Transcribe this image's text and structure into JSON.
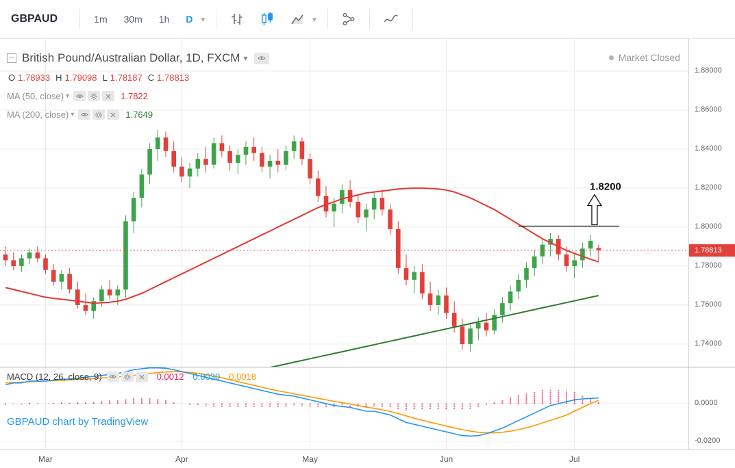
{
  "colors": {
    "up": "#3fa34a",
    "down": "#e2403b",
    "ma50": "#e8352e",
    "ma200": "#2e7d32",
    "macd": "#2196f3",
    "signal": "#ff9800",
    "hist": "#e91e63",
    "accent": "#2196f3",
    "grid": "#ececec",
    "annotation": "#111111"
  },
  "toolbar": {
    "symbol": "GBPAUD",
    "intervals": [
      {
        "label": "1m",
        "active": false
      },
      {
        "label": "30m",
        "active": false
      },
      {
        "label": "1h",
        "active": false
      },
      {
        "label": "D",
        "active": true
      }
    ]
  },
  "icons": {
    "toolbar": [
      "bars-chart-icon",
      "candlestick-chart-icon",
      "area-chart-icon",
      "chevron-down-icon",
      "compare-icon",
      "curve-line-icon"
    ],
    "legend": [
      "collapse-pane-icon",
      "chevron-down-icon",
      "eye-icon",
      "gear-icon",
      "close-icon"
    ],
    "status": [
      "status-dot"
    ]
  },
  "legend": {
    "title": "British Pound/Australian Dollar, 1D, FXCM",
    "ohlc": [
      {
        "label": "O",
        "value": "1.78933"
      },
      {
        "label": "H",
        "value": "1.79098"
      },
      {
        "label": "L",
        "value": "1.78187"
      },
      {
        "label": "C",
        "value": "1.78813"
      }
    ],
    "ma50_label": "MA (50, close)",
    "ma50_value": "1.7822",
    "ma200_label": "MA (200, close)",
    "ma200_value": "1.7649"
  },
  "market_status": "Market Closed",
  "macd_legend": {
    "label": "MACD (12, 26, close, 9)",
    "values": [
      "0.0012",
      "0.0030",
      "0.0018"
    ]
  },
  "attribution": "GBPAUD chart by TradingView",
  "price_axis": {
    "last_price_label": "1.78813"
  },
  "chart_data": {
    "type": "candlestick",
    "symbol": "GBPAUD",
    "title": "British Pound/Australian Dollar, 1D, FXCM",
    "interval": "1D",
    "exchange": "FXCM",
    "ylim": [
      1.7284,
      1.8968
    ],
    "macd_ylim": [
      -0.024,
      0.0196
    ],
    "price_ticks": [
      {
        "label": "1.88000",
        "value": 1.88
      },
      {
        "label": "1.86000",
        "value": 1.86
      },
      {
        "label": "1.84000",
        "value": 1.84
      },
      {
        "label": "1.82000",
        "value": 1.82
      },
      {
        "label": "1.80000",
        "value": 1.8
      },
      {
        "label": "1.78000",
        "value": 1.78
      },
      {
        "label": "1.76000",
        "value": 1.76
      },
      {
        "label": "1.74000",
        "value": 1.74
      }
    ],
    "macd_ticks": [
      {
        "label": "0.0000",
        "value": 0
      },
      {
        "label": "-0.0200",
        "value": -0.02
      }
    ],
    "time_ticks": [
      {
        "label": "Mar",
        "index": 5
      },
      {
        "label": "Apr",
        "index": 22
      },
      {
        "label": "May",
        "index": 38
      },
      {
        "label": "Jun",
        "index": 55
      },
      {
        "label": "Jul",
        "index": 71
      }
    ],
    "last_price": 1.78813,
    "annotation": {
      "text": "1.8200",
      "line_price": 1.8005,
      "line_start_index": 64,
      "line_end_index": 76.6,
      "arrow_index": 73.5
    },
    "ohlc": [
      [
        1.786,
        1.79,
        1.78,
        1.783
      ],
      [
        1.783,
        1.787,
        1.778,
        1.78
      ],
      [
        1.78,
        1.786,
        1.777,
        1.784
      ],
      [
        1.784,
        1.789,
        1.781,
        1.787
      ],
      [
        1.787,
        1.79,
        1.782,
        1.784
      ],
      [
        1.784,
        1.786,
        1.776,
        1.778
      ],
      [
        1.778,
        1.781,
        1.77,
        1.772
      ],
      [
        1.772,
        1.778,
        1.768,
        1.776
      ],
      [
        1.776,
        1.779,
        1.766,
        1.768
      ],
      [
        1.768,
        1.772,
        1.758,
        1.76
      ],
      [
        1.76,
        1.766,
        1.755,
        1.757
      ],
      [
        1.757,
        1.764,
        1.753,
        1.762
      ],
      [
        1.762,
        1.77,
        1.759,
        1.768
      ],
      [
        1.768,
        1.773,
        1.763,
        1.765
      ],
      [
        1.765,
        1.77,
        1.76,
        1.768
      ],
      [
        1.768,
        1.806,
        1.764,
        1.803
      ],
      [
        1.803,
        1.818,
        1.797,
        1.815
      ],
      [
        1.815,
        1.83,
        1.81,
        1.827
      ],
      [
        1.827,
        1.843,
        1.822,
        1.84
      ],
      [
        1.84,
        1.85,
        1.834,
        1.846
      ],
      [
        1.846,
        1.849,
        1.836,
        1.839
      ],
      [
        1.839,
        1.844,
        1.828,
        1.831
      ],
      [
        1.831,
        1.836,
        1.823,
        1.826
      ],
      [
        1.826,
        1.833,
        1.82,
        1.83
      ],
      [
        1.83,
        1.838,
        1.826,
        1.835
      ],
      [
        1.835,
        1.841,
        1.828,
        1.832
      ],
      [
        1.832,
        1.846,
        1.83,
        1.843
      ],
      [
        1.843,
        1.847,
        1.836,
        1.839
      ],
      [
        1.839,
        1.842,
        1.829,
        1.833
      ],
      [
        1.833,
        1.84,
        1.827,
        1.837
      ],
      [
        1.837,
        1.844,
        1.832,
        1.841
      ],
      [
        1.841,
        1.846,
        1.834,
        1.838
      ],
      [
        1.838,
        1.841,
        1.828,
        1.831
      ],
      [
        1.831,
        1.837,
        1.825,
        1.834
      ],
      [
        1.834,
        1.84,
        1.828,
        1.832
      ],
      [
        1.832,
        1.842,
        1.829,
        1.839
      ],
      [
        1.839,
        1.847,
        1.835,
        1.844
      ],
      [
        1.844,
        1.846,
        1.832,
        1.835
      ],
      [
        1.835,
        1.838,
        1.822,
        1.825
      ],
      [
        1.825,
        1.829,
        1.813,
        1.816
      ],
      [
        1.816,
        1.821,
        1.805,
        1.808
      ],
      [
        1.808,
        1.815,
        1.8,
        1.812
      ],
      [
        1.812,
        1.822,
        1.807,
        1.819
      ],
      [
        1.819,
        1.824,
        1.81,
        1.813
      ],
      [
        1.813,
        1.817,
        1.802,
        1.805
      ],
      [
        1.805,
        1.812,
        1.798,
        1.809
      ],
      [
        1.809,
        1.818,
        1.804,
        1.815
      ],
      [
        1.815,
        1.819,
        1.806,
        1.809
      ],
      [
        1.809,
        1.812,
        1.796,
        1.799
      ],
      [
        1.799,
        1.803,
        1.776,
        1.779
      ],
      [
        1.779,
        1.786,
        1.77,
        1.773
      ],
      [
        1.773,
        1.78,
        1.766,
        1.777
      ],
      [
        1.777,
        1.781,
        1.763,
        1.766
      ],
      [
        1.766,
        1.772,
        1.757,
        1.76
      ],
      [
        1.76,
        1.768,
        1.755,
        1.765
      ],
      [
        1.765,
        1.769,
        1.753,
        1.756
      ],
      [
        1.756,
        1.762,
        1.746,
        1.749
      ],
      [
        1.749,
        1.753,
        1.737,
        1.74
      ],
      [
        1.74,
        1.751,
        1.736,
        1.748
      ],
      [
        1.748,
        1.754,
        1.742,
        1.751
      ],
      [
        1.751,
        1.756,
        1.744,
        1.747
      ],
      [
        1.747,
        1.758,
        1.745,
        1.755
      ],
      [
        1.755,
        1.764,
        1.751,
        1.761
      ],
      [
        1.761,
        1.77,
        1.757,
        1.767
      ],
      [
        1.767,
        1.776,
        1.763,
        1.773
      ],
      [
        1.773,
        1.782,
        1.769,
        1.779
      ],
      [
        1.779,
        1.788,
        1.775,
        1.785
      ],
      [
        1.785,
        1.794,
        1.781,
        1.791
      ],
      [
        1.791,
        1.797,
        1.785,
        1.794
      ],
      [
        1.794,
        1.796,
        1.783,
        1.786
      ],
      [
        1.786,
        1.79,
        1.777,
        1.78
      ],
      [
        1.78,
        1.786,
        1.774,
        1.783
      ],
      [
        1.783,
        1.792,
        1.779,
        1.789
      ],
      [
        1.789,
        1.796,
        1.785,
        1.793
      ],
      [
        1.78933,
        1.79098,
        1.78187,
        1.78813
      ]
    ],
    "ma50": [
      1.769,
      1.768,
      1.767,
      1.766,
      1.765,
      1.764,
      1.7635,
      1.763,
      1.7625,
      1.762,
      1.7615,
      1.761,
      1.7612,
      1.7615,
      1.762,
      1.763,
      1.7645,
      1.766,
      1.768,
      1.77,
      1.772,
      1.774,
      1.776,
      1.778,
      1.78,
      1.782,
      1.784,
      1.786,
      1.788,
      1.79,
      1.792,
      1.794,
      1.796,
      1.798,
      1.8,
      1.802,
      1.804,
      1.806,
      1.808,
      1.81,
      1.8115,
      1.813,
      1.8145,
      1.8155,
      1.8165,
      1.8175,
      1.818,
      1.8185,
      1.819,
      1.8195,
      1.8198,
      1.82,
      1.82,
      1.8198,
      1.8195,
      1.819,
      1.818,
      1.8165,
      1.815,
      1.813,
      1.811,
      1.809,
      1.8065,
      1.804,
      1.8015,
      1.799,
      1.7965,
      1.794,
      1.792,
      1.79,
      1.788,
      1.7865,
      1.785,
      1.7835,
      1.7822
    ],
    "ma200": [
      null,
      null,
      null,
      null,
      null,
      null,
      null,
      null,
      null,
      null,
      null,
      null,
      null,
      null,
      null,
      null,
      null,
      null,
      null,
      null,
      null,
      null,
      null,
      null,
      null,
      null,
      null,
      null,
      null,
      null,
      null,
      null,
      null,
      1.728,
      1.7289,
      1.7298,
      1.7307,
      1.7316,
      1.7325,
      1.7334,
      1.7343,
      1.7352,
      1.7361,
      1.737,
      1.7379,
      1.7388,
      1.7397,
      1.7406,
      1.7415,
      1.7424,
      1.7433,
      1.7442,
      1.7451,
      1.746,
      1.7469,
      1.7478,
      1.7487,
      1.7496,
      1.7505,
      1.7514,
      1.7523,
      1.7532,
      1.7541,
      1.755,
      1.7559,
      1.7568,
      1.7577,
      1.7586,
      1.7595,
      1.7604,
      1.7613,
      1.7622,
      1.7631,
      1.764,
      1.7649
    ],
    "macd": {
      "macd": [
        0.01,
        0.011,
        0.011,
        0.012,
        0.012,
        0.012,
        0.0125,
        0.013,
        0.013,
        0.0135,
        0.014,
        0.0145,
        0.015,
        0.0155,
        0.016,
        0.017,
        0.018,
        0.0185,
        0.019,
        0.019,
        0.0188,
        0.018,
        0.017,
        0.016,
        0.015,
        0.014,
        0.013,
        0.012,
        0.011,
        0.01,
        0.009,
        0.008,
        0.007,
        0.006,
        0.005,
        0.0045,
        0.004,
        0.003,
        0.002,
        0.001,
        0.0,
        -0.001,
        -0.0015,
        -0.002,
        -0.003,
        -0.004,
        -0.004,
        -0.005,
        -0.006,
        -0.008,
        -0.01,
        -0.011,
        -0.012,
        -0.013,
        -0.014,
        -0.015,
        -0.016,
        -0.017,
        -0.0172,
        -0.017,
        -0.016,
        -0.0145,
        -0.013,
        -0.011,
        -0.009,
        -0.007,
        -0.005,
        -0.003,
        -0.001,
        0.0,
        0.001,
        0.002,
        0.0025,
        0.0028,
        0.003
      ],
      "signal": [
        0.011,
        0.0112,
        0.0114,
        0.0116,
        0.0118,
        0.012,
        0.0122,
        0.0124,
        0.0126,
        0.0128,
        0.013,
        0.0133,
        0.0136,
        0.0139,
        0.0142,
        0.0146,
        0.015,
        0.0155,
        0.016,
        0.0165,
        0.0168,
        0.017,
        0.0169,
        0.0166,
        0.0161,
        0.0154,
        0.0146,
        0.0137,
        0.0127,
        0.0117,
        0.0107,
        0.0097,
        0.0087,
        0.0077,
        0.0068,
        0.006,
        0.0052,
        0.0044,
        0.0036,
        0.0028,
        0.002,
        0.0012,
        0.0005,
        -0.0002,
        -0.001,
        -0.0018,
        -0.0025,
        -0.0033,
        -0.0042,
        -0.0053,
        -0.0065,
        -0.0077,
        -0.0088,
        -0.0099,
        -0.0109,
        -0.0119,
        -0.0129,
        -0.0138,
        -0.0146,
        -0.0152,
        -0.0155,
        -0.0155,
        -0.0152,
        -0.0146,
        -0.0138,
        -0.0128,
        -0.0116,
        -0.0103,
        -0.0089,
        -0.0075,
        -0.006,
        -0.004,
        -0.002,
        0.0,
        0.0018
      ]
    }
  }
}
